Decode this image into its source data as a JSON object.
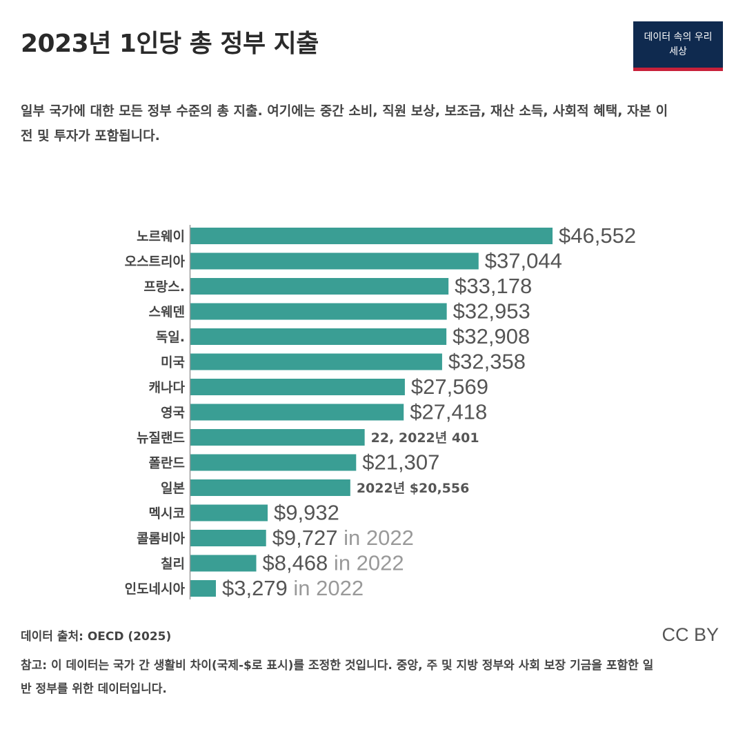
{
  "header": {
    "title": "2023년 1인당 총 정부 지출",
    "logo_line1": "데이터 속의 우리",
    "logo_line2": "세상",
    "subtitle": "일부 국가에 대한 모든 정부 수준의 총 지출. 여기에는 중간 소비, 직원 보상, 보조금, 재산 소득, 사회적 혜택, 자본 이전 및 투자가 포함됩니다."
  },
  "chart_data": {
    "type": "bar",
    "orientation": "horizontal",
    "title": "2023년 1인당 총 정부 지출",
    "categories": [
      "노르웨이",
      "오스트리아",
      "프랑스.",
      "스웨덴",
      "독일.",
      "미국",
      "캐나다",
      "영국",
      "뉴질랜드",
      "폴란드",
      "일본",
      "멕시코",
      "콜롬비아",
      "칠리",
      "인도네시아"
    ],
    "values": [
      46552,
      37044,
      33178,
      32953,
      32908,
      32358,
      27569,
      27418,
      22401,
      21307,
      20556,
      9932,
      9727,
      8468,
      3279
    ],
    "value_labels": [
      "$46,552",
      "$37,044",
      "$33,178",
      "$32,953",
      "$32,908",
      "$32,358",
      "$27,569",
      "$27,418",
      "22, 2022년 401",
      "$21,307",
      "2022년 $20,556",
      "$9,932",
      "$9,727",
      "$8,468",
      "$3,279"
    ],
    "label_notes": [
      "",
      "",
      "",
      "",
      "",
      "",
      "",
      "",
      "",
      "",
      "",
      "",
      "in 2022",
      "in 2022",
      "in 2022"
    ],
    "bar_color": "#3a9e94",
    "xlim": [
      0,
      46552
    ],
    "grid": false,
    "legend": "none"
  },
  "footer": {
    "source": "데이터 출처: OECD (2025)",
    "license": "CC BY",
    "note": "참고: 이 데이터는 국가 간 생활비 차이(국제-$로 표시)를 조정한 것입니다. 중앙, 주 및 지방 정부와 사회 보장 기금을 포함한 일반 정부를 위한 데이터입니다."
  }
}
